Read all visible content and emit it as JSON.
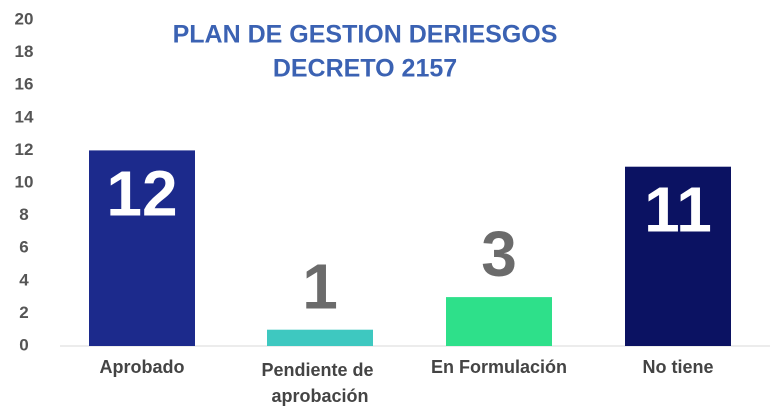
{
  "chart_data": {
    "type": "bar",
    "title": [
      "PLAN DE GESTION DERIESGOS",
      "DECRETO 2157"
    ],
    "categories": [
      "Aprobado",
      "Pendiente de aprobación",
      "En Formulación",
      "No tiene"
    ],
    "values": [
      12,
      1,
      3,
      11
    ],
    "colors": [
      "#1c2a8c",
      "#3ec8c0",
      "#2ee08a",
      "#0b1262"
    ],
    "ylim": [
      0,
      20
    ],
    "yticks": [
      0,
      2,
      4,
      6,
      8,
      10,
      12,
      14,
      16,
      18,
      20
    ]
  }
}
